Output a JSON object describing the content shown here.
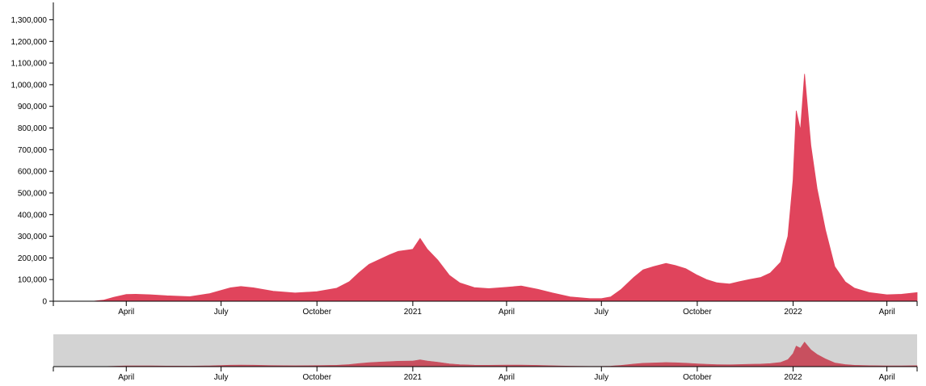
{
  "colors": {
    "series": "#e0445c",
    "brush_series": "#c8505f",
    "brush_background": "#d3d3d3",
    "axis": "#000000"
  },
  "chart_data": [
    {
      "type": "area",
      "ylim": [
        0,
        1380000
      ],
      "xlim": [
        "2020-01-22",
        "2022-04-30"
      ],
      "y_ticks": [
        0,
        100000,
        200000,
        300000,
        400000,
        500000,
        600000,
        700000,
        800000,
        900000,
        1000000,
        1100000,
        1200000,
        1300000
      ],
      "y_tick_labels": [
        "0",
        "100,000",
        "200,000",
        "300,000",
        "400,000",
        "500,000",
        "600,000",
        "700,000",
        "800,000",
        "900,000",
        "1,000,000",
        "1,100,000",
        "1,200,000",
        "1,300,000"
      ],
      "x_ticks": [
        "2020-04-01",
        "2020-07-01",
        "2020-10-01",
        "2021-01-01",
        "2021-04-01",
        "2021-07-01",
        "2021-10-01",
        "2022-01-01",
        "2022-04-01"
      ],
      "x_tick_labels": [
        "April",
        "July",
        "October",
        "2021",
        "April",
        "July",
        "October",
        "2022",
        "April"
      ],
      "series": [
        {
          "x": [
            "2020-01-22",
            "2020-03-01",
            "2020-03-10",
            "2020-03-20",
            "2020-04-01",
            "2020-04-10",
            "2020-04-24",
            "2020-05-10",
            "2020-06-01",
            "2020-06-20",
            "2020-07-01",
            "2020-07-10",
            "2020-07-20",
            "2020-08-01",
            "2020-08-20",
            "2020-09-10",
            "2020-10-01",
            "2020-10-20",
            "2020-11-01",
            "2020-11-10",
            "2020-11-20",
            "2020-12-01",
            "2020-12-10",
            "2020-12-18",
            "2021-01-01",
            "2021-01-08",
            "2021-01-15",
            "2021-01-25",
            "2021-02-05",
            "2021-02-15",
            "2021-03-01",
            "2021-03-15",
            "2021-04-01",
            "2021-04-15",
            "2021-05-01",
            "2021-05-15",
            "2021-06-01",
            "2021-06-20",
            "2021-07-01",
            "2021-07-10",
            "2021-07-20",
            "2021-08-01",
            "2021-08-10",
            "2021-08-20",
            "2021-09-01",
            "2021-09-10",
            "2021-09-20",
            "2021-10-01",
            "2021-10-10",
            "2021-10-20",
            "2021-11-01",
            "2021-11-10",
            "2021-11-20",
            "2021-12-01",
            "2021-12-10",
            "2021-12-20",
            "2021-12-27",
            "2022-01-01",
            "2022-01-04",
            "2022-01-08",
            "2022-01-12",
            "2022-01-18",
            "2022-01-24",
            "2022-02-01",
            "2022-02-10",
            "2022-02-20",
            "2022-03-01",
            "2022-03-15",
            "2022-04-01",
            "2022-04-15",
            "2022-04-30"
          ],
          "values": [
            0,
            500,
            5000,
            18000,
            31000,
            32000,
            30000,
            25000,
            21000,
            35000,
            50000,
            62000,
            68000,
            62000,
            46000,
            38000,
            44000,
            60000,
            90000,
            130000,
            170000,
            195000,
            215000,
            230000,
            240000,
            290000,
            240000,
            190000,
            120000,
            85000,
            63000,
            58000,
            64000,
            70000,
            55000,
            38000,
            20000,
            12000,
            12000,
            20000,
            55000,
            110000,
            145000,
            160000,
            175000,
            165000,
            150000,
            120000,
            100000,
            85000,
            80000,
            90000,
            100000,
            110000,
            130000,
            180000,
            300000,
            560000,
            880000,
            790000,
            1050000,
            720000,
            520000,
            330000,
            160000,
            90000,
            60000,
            40000,
            30000,
            32000,
            40000
          ]
        }
      ]
    },
    {
      "type": "area",
      "ylim": [
        0,
        1380000
      ],
      "xlim": [
        "2020-01-22",
        "2022-04-30"
      ],
      "x_ticks": [
        "2020-04-01",
        "2020-07-01",
        "2020-10-01",
        "2021-01-01",
        "2021-04-01",
        "2021-07-01",
        "2021-10-01",
        "2022-01-01",
        "2022-04-01"
      ],
      "x_tick_labels": [
        "April",
        "July",
        "October",
        "2021",
        "April",
        "July",
        "October",
        "2022",
        "April"
      ]
    }
  ]
}
